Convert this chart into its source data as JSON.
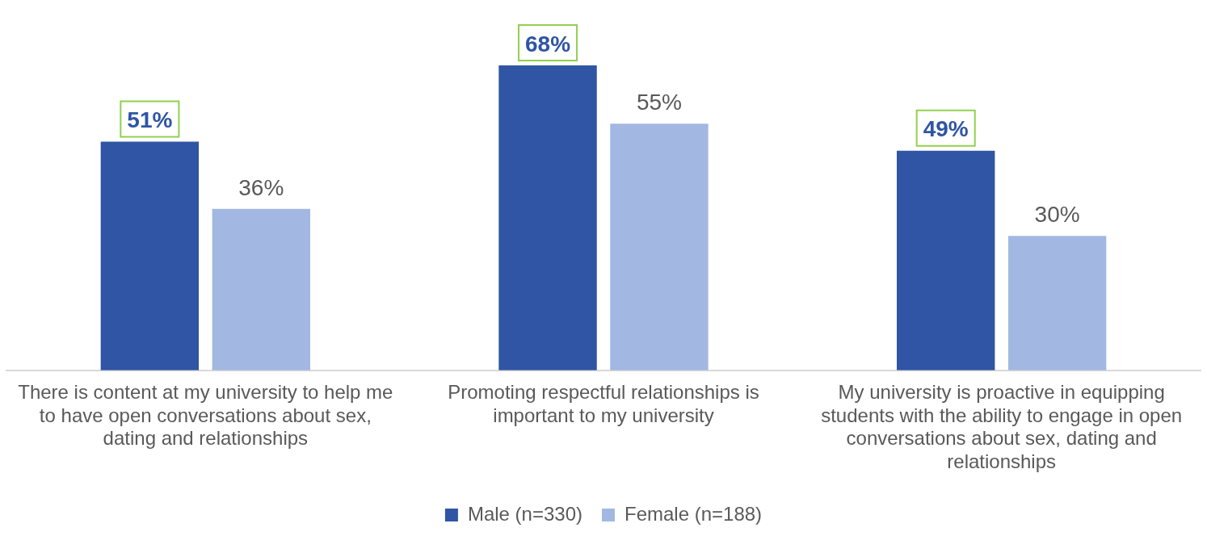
{
  "chart_data": {
    "type": "bar",
    "categories": [
      "There is content at my university to help me to have open conversations about sex, dating and relationships",
      "Promoting respectful relationships is important to my university",
      "My university is proactive in equipping students with the ability to engage in open conversations about sex, dating and relationships"
    ],
    "series": [
      {
        "name": "Male (n=330)",
        "color": "#2f55a4",
        "values": [
          51,
          68,
          49
        ],
        "value_labels": [
          "51%",
          "68%",
          "49%"
        ]
      },
      {
        "name": "Female (n=188)",
        "color": "#a2b8e2",
        "values": [
          36,
          55,
          30
        ],
        "value_labels": [
          "36%",
          "55%",
          "30%"
        ]
      }
    ],
    "legend": "bottom",
    "grid": false
  }
}
